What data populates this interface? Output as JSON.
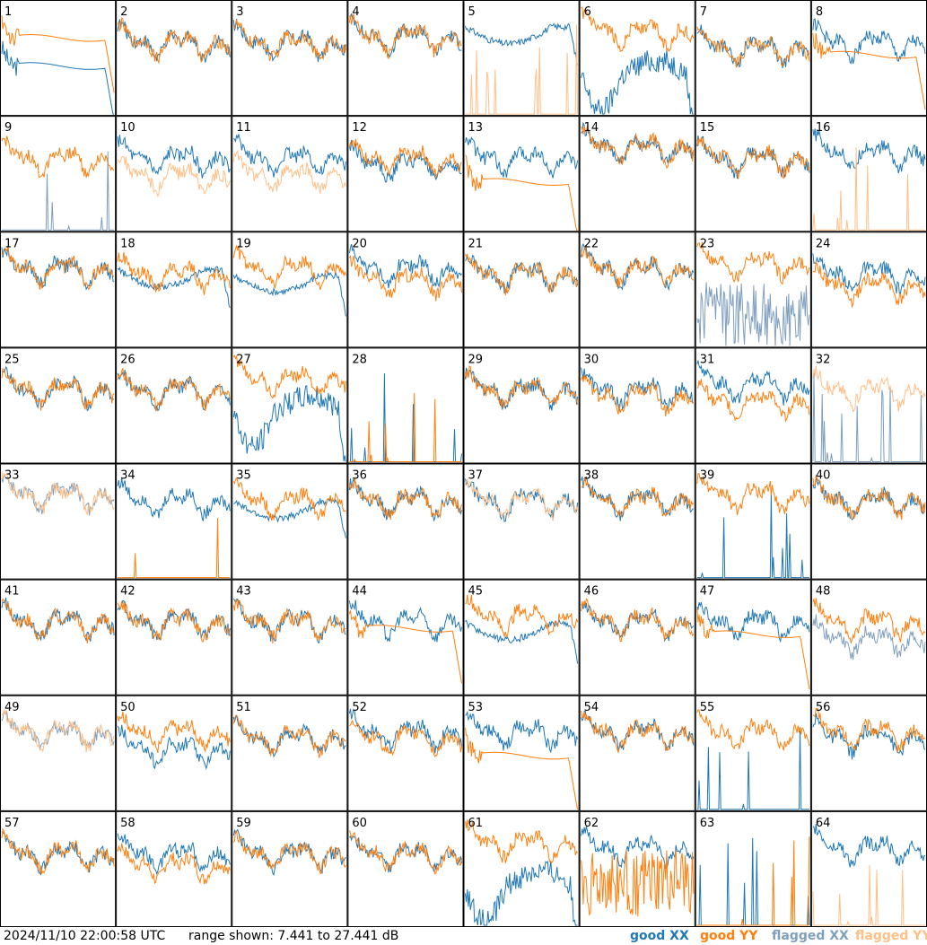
{
  "timestamp": "2024/11/10 22:00:58 UTC",
  "range_text": "range shown: 7.441 to 27.441 dB",
  "legend": [
    {
      "key": "good_xx",
      "label": "good XX",
      "color": "#1f77b4"
    },
    {
      "key": "good_yy",
      "label": "good YY",
      "color": "#ff7f0e"
    },
    {
      "key": "flagged_xx",
      "label": "flagged XX",
      "color": "#7f9fbf"
    },
    {
      "key": "flagged_yy",
      "label": "flagged YY",
      "color": "#ffbf87"
    }
  ],
  "chart_data": {
    "type": "line",
    "ylim": [
      7.441,
      27.441
    ],
    "y_unit": "dB",
    "panels": [
      {
        "n": "1",
        "xx": "good",
        "yy": "good",
        "xx_shape": "bandpass",
        "yy_shape": "bandpass",
        "xx_level": 16,
        "yy_level": 21
      },
      {
        "n": "2",
        "xx": "good",
        "yy": "good",
        "xx_shape": "normal",
        "yy_shape": "normal",
        "xx_level": 20,
        "yy_level": 20
      },
      {
        "n": "3",
        "xx": "good",
        "yy": "good",
        "xx_shape": "normal",
        "yy_shape": "normal",
        "xx_level": 20,
        "yy_level": 20
      },
      {
        "n": "4",
        "xx": "good",
        "yy": "good",
        "xx_shape": "normal",
        "yy_shape": "normal",
        "xx_level": 21,
        "yy_level": 21
      },
      {
        "n": "5",
        "xx": "good",
        "yy": "flagged",
        "xx_shape": "smooth",
        "yy_shape": "spiky",
        "xx_level": 20,
        "yy_level": 8
      },
      {
        "n": "6",
        "xx": "good",
        "yy": "good",
        "xx_shape": "deep",
        "yy_shape": "normal",
        "xx_level": 14,
        "yy_level": 22
      },
      {
        "n": "7",
        "xx": "good",
        "yy": "good",
        "xx_shape": "normal",
        "yy_shape": "normal",
        "xx_level": 19,
        "yy_level": 19
      },
      {
        "n": "8",
        "xx": "good",
        "yy": "good",
        "xx_shape": "normal",
        "yy_shape": "bandpass",
        "xx_level": 20,
        "yy_level": 18
      },
      {
        "n": "9",
        "xx": "flagged",
        "yy": "good",
        "xx_shape": "spiky",
        "yy_shape": "normal",
        "xx_level": 8,
        "yy_level": 20
      },
      {
        "n": "10",
        "xx": "good",
        "yy": "flagged",
        "xx_shape": "normal",
        "yy_shape": "normal",
        "xx_level": 20,
        "yy_level": 17
      },
      {
        "n": "11",
        "xx": "good",
        "yy": "flagged",
        "xx_shape": "normal",
        "yy_shape": "normal",
        "xx_level": 20,
        "yy_level": 17
      },
      {
        "n": "12",
        "xx": "good",
        "yy": "good",
        "xx_shape": "normal",
        "yy_shape": "normal",
        "xx_level": 19,
        "yy_level": 20
      },
      {
        "n": "13",
        "xx": "good",
        "yy": "good",
        "xx_shape": "normal",
        "yy_shape": "bandpass",
        "xx_level": 20,
        "yy_level": 16
      },
      {
        "n": "14",
        "xx": "good",
        "yy": "good",
        "xx_shape": "normal",
        "yy_shape": "normal",
        "xx_level": 22,
        "yy_level": 22
      },
      {
        "n": "15",
        "xx": "good",
        "yy": "good",
        "xx_shape": "normal",
        "yy_shape": "normal",
        "xx_level": 20,
        "yy_level": 20
      },
      {
        "n": "16",
        "xx": "good",
        "yy": "flagged",
        "xx_shape": "normal",
        "yy_shape": "spiky",
        "xx_level": 21,
        "yy_level": 8
      },
      {
        "n": "17",
        "xx": "good",
        "yy": "good",
        "xx_shape": "normal",
        "yy_shape": "normal",
        "xx_level": 21,
        "yy_level": 21
      },
      {
        "n": "18",
        "xx": "good",
        "yy": "good",
        "xx_shape": "smooth",
        "yy_shape": "normal",
        "xx_level": 18,
        "yy_level": 20
      },
      {
        "n": "19",
        "xx": "good",
        "yy": "good",
        "xx_shape": "smooth",
        "yy_shape": "normal",
        "xx_level": 17,
        "yy_level": 21
      },
      {
        "n": "20",
        "xx": "good",
        "yy": "good",
        "xx_shape": "normal",
        "yy_shape": "normal",
        "xx_level": 21,
        "yy_level": 19
      },
      {
        "n": "21",
        "xx": "good",
        "yy": "good",
        "xx_shape": "normal",
        "yy_shape": "normal",
        "xx_level": 20,
        "yy_level": 20
      },
      {
        "n": "22",
        "xx": "good",
        "yy": "good",
        "xx_shape": "normal",
        "yy_shape": "normal",
        "xx_level": 21,
        "yy_level": 21
      },
      {
        "n": "23",
        "xx": "flagged",
        "yy": "good",
        "xx_shape": "noisy",
        "yy_shape": "normal",
        "xx_level": 13,
        "yy_level": 22
      },
      {
        "n": "24",
        "xx": "good",
        "yy": "good",
        "xx_shape": "normal",
        "yy_shape": "normal",
        "xx_level": 20,
        "yy_level": 18
      },
      {
        "n": "25",
        "xx": "good",
        "yy": "good",
        "xx_shape": "normal",
        "yy_shape": "normal",
        "xx_level": 20,
        "yy_level": 20
      },
      {
        "n": "26",
        "xx": "good",
        "yy": "good",
        "xx_shape": "normal",
        "yy_shape": "normal",
        "xx_level": 20,
        "yy_level": 20
      },
      {
        "n": "27",
        "xx": "good",
        "yy": "good",
        "xx_shape": "deep",
        "yy_shape": "normal",
        "xx_level": 16,
        "yy_level": 22
      },
      {
        "n": "28",
        "xx": "good",
        "yy": "good",
        "xx_shape": "spiky",
        "yy_shape": "spiky",
        "xx_level": 8,
        "yy_level": 8
      },
      {
        "n": "29",
        "xx": "good",
        "yy": "good",
        "xx_shape": "normal",
        "yy_shape": "normal",
        "xx_level": 20,
        "yy_level": 20
      },
      {
        "n": "30",
        "xx": "good",
        "yy": "good",
        "xx_shape": "normal",
        "yy_shape": "normal",
        "xx_level": 20,
        "yy_level": 19
      },
      {
        "n": "31",
        "xx": "good",
        "yy": "good",
        "xx_shape": "normal",
        "yy_shape": "normal",
        "xx_level": 21,
        "yy_level": 18
      },
      {
        "n": "32",
        "xx": "flagged",
        "yy": "flagged",
        "xx_shape": "spiky",
        "yy_shape": "normal",
        "xx_level": 8,
        "yy_level": 20
      },
      {
        "n": "33",
        "xx": "flagged",
        "yy": "flagged",
        "xx_shape": "normal",
        "yy_shape": "normal",
        "xx_level": 22,
        "yy_level": 22
      },
      {
        "n": "34",
        "xx": "good",
        "yy": "good",
        "xx_shape": "normal",
        "yy_shape": "spiky",
        "xx_level": 21,
        "yy_level": 8
      },
      {
        "n": "35",
        "xx": "good",
        "yy": "good",
        "xx_shape": "smooth",
        "yy_shape": "normal",
        "xx_level": 18,
        "yy_level": 21
      },
      {
        "n": "36",
        "xx": "good",
        "yy": "good",
        "xx_shape": "normal",
        "yy_shape": "normal",
        "xx_level": 21,
        "yy_level": 21
      },
      {
        "n": "37",
        "xx": "good",
        "yy": "flagged",
        "xx_shape": "normal",
        "yy_shape": "normal",
        "xx_level": 21,
        "yy_level": 21
      },
      {
        "n": "38",
        "xx": "good",
        "yy": "good",
        "xx_shape": "normal",
        "yy_shape": "normal",
        "xx_level": 21,
        "yy_level": 21
      },
      {
        "n": "39",
        "xx": "good",
        "yy": "good",
        "xx_shape": "spiky",
        "yy_shape": "normal",
        "xx_level": 8,
        "yy_level": 22
      },
      {
        "n": "40",
        "xx": "good",
        "yy": "good",
        "xx_shape": "normal",
        "yy_shape": "normal",
        "xx_level": 21,
        "yy_level": 21
      },
      {
        "n": "41",
        "xx": "good",
        "yy": "good",
        "xx_shape": "normal",
        "yy_shape": "normal",
        "xx_level": 20,
        "yy_level": 20
      },
      {
        "n": "42",
        "xx": "good",
        "yy": "good",
        "xx_shape": "normal",
        "yy_shape": "normal",
        "xx_level": 20,
        "yy_level": 20
      },
      {
        "n": "43",
        "xx": "good",
        "yy": "good",
        "xx_shape": "normal",
        "yy_shape": "normal",
        "xx_level": 20,
        "yy_level": 20
      },
      {
        "n": "44",
        "xx": "good",
        "yy": "good",
        "xx_shape": "normal",
        "yy_shape": "bandpass",
        "xx_level": 20,
        "yy_level": 19
      },
      {
        "n": "45",
        "xx": "good",
        "yy": "good",
        "xx_shape": "smooth",
        "yy_shape": "normal",
        "xx_level": 17,
        "yy_level": 21
      },
      {
        "n": "46",
        "xx": "good",
        "yy": "good",
        "xx_shape": "normal",
        "yy_shape": "normal",
        "xx_level": 20,
        "yy_level": 20
      },
      {
        "n": "47",
        "xx": "good",
        "yy": "good",
        "xx_shape": "normal",
        "yy_shape": "bandpass",
        "xx_level": 20,
        "yy_level": 18
      },
      {
        "n": "48",
        "xx": "flagged",
        "yy": "good",
        "xx_shape": "normal",
        "yy_shape": "normal",
        "xx_level": 17,
        "yy_level": 20
      },
      {
        "n": "49",
        "xx": "flagged",
        "yy": "flagged",
        "xx_shape": "normal",
        "yy_shape": "normal",
        "xx_level": 21,
        "yy_level": 21
      },
      {
        "n": "50",
        "xx": "good",
        "yy": "good",
        "xx_shape": "normal",
        "yy_shape": "normal",
        "xx_level": 18,
        "yy_level": 21
      },
      {
        "n": "51",
        "xx": "good",
        "yy": "good",
        "xx_shape": "normal",
        "yy_shape": "normal",
        "xx_level": 20,
        "yy_level": 20
      },
      {
        "n": "52",
        "xx": "good",
        "yy": "good",
        "xx_shape": "normal",
        "yy_shape": "normal",
        "xx_level": 21,
        "yy_level": 20
      },
      {
        "n": "53",
        "xx": "good",
        "yy": "good",
        "xx_shape": "normal",
        "yy_shape": "bandpass",
        "xx_level": 21,
        "yy_level": 17
      },
      {
        "n": "54",
        "xx": "good",
        "yy": "good",
        "xx_shape": "normal",
        "yy_shape": "normal",
        "xx_level": 21,
        "yy_level": 21
      },
      {
        "n": "55",
        "xx": "good",
        "yy": "good",
        "xx_shape": "spiky",
        "yy_shape": "normal",
        "xx_level": 8,
        "yy_level": 21
      },
      {
        "n": "56",
        "xx": "good",
        "yy": "good",
        "xx_shape": "normal",
        "yy_shape": "normal",
        "xx_level": 20,
        "yy_level": 21
      },
      {
        "n": "57",
        "xx": "good",
        "yy": "good",
        "xx_shape": "normal",
        "yy_shape": "normal",
        "xx_level": 20,
        "yy_level": 20
      },
      {
        "n": "58",
        "xx": "good",
        "yy": "good",
        "xx_shape": "normal",
        "yy_shape": "normal",
        "xx_level": 20,
        "yy_level": 18
      },
      {
        "n": "59",
        "xx": "good",
        "yy": "good",
        "xx_shape": "normal",
        "yy_shape": "normal",
        "xx_level": 20,
        "yy_level": 20
      },
      {
        "n": "60",
        "xx": "good",
        "yy": "good",
        "xx_shape": "normal",
        "yy_shape": "normal",
        "xx_level": 20,
        "yy_level": 20
      },
      {
        "n": "61",
        "xx": "good",
        "yy": "good",
        "xx_shape": "deep",
        "yy_shape": "normal",
        "xx_level": 14,
        "yy_level": 22
      },
      {
        "n": "62",
        "xx": "good",
        "yy": "good",
        "xx_shape": "normal",
        "yy_shape": "noisy",
        "xx_level": 21,
        "yy_level": 15
      },
      {
        "n": "63",
        "xx": "good",
        "yy": "good",
        "xx_shape": "spiky",
        "yy_shape": "spiky",
        "xx_level": 8,
        "yy_level": 8
      },
      {
        "n": "64",
        "xx": "good",
        "yy": "flagged",
        "xx_shape": "normal",
        "yy_shape": "spiky",
        "xx_level": 21,
        "yy_level": 8
      }
    ]
  }
}
